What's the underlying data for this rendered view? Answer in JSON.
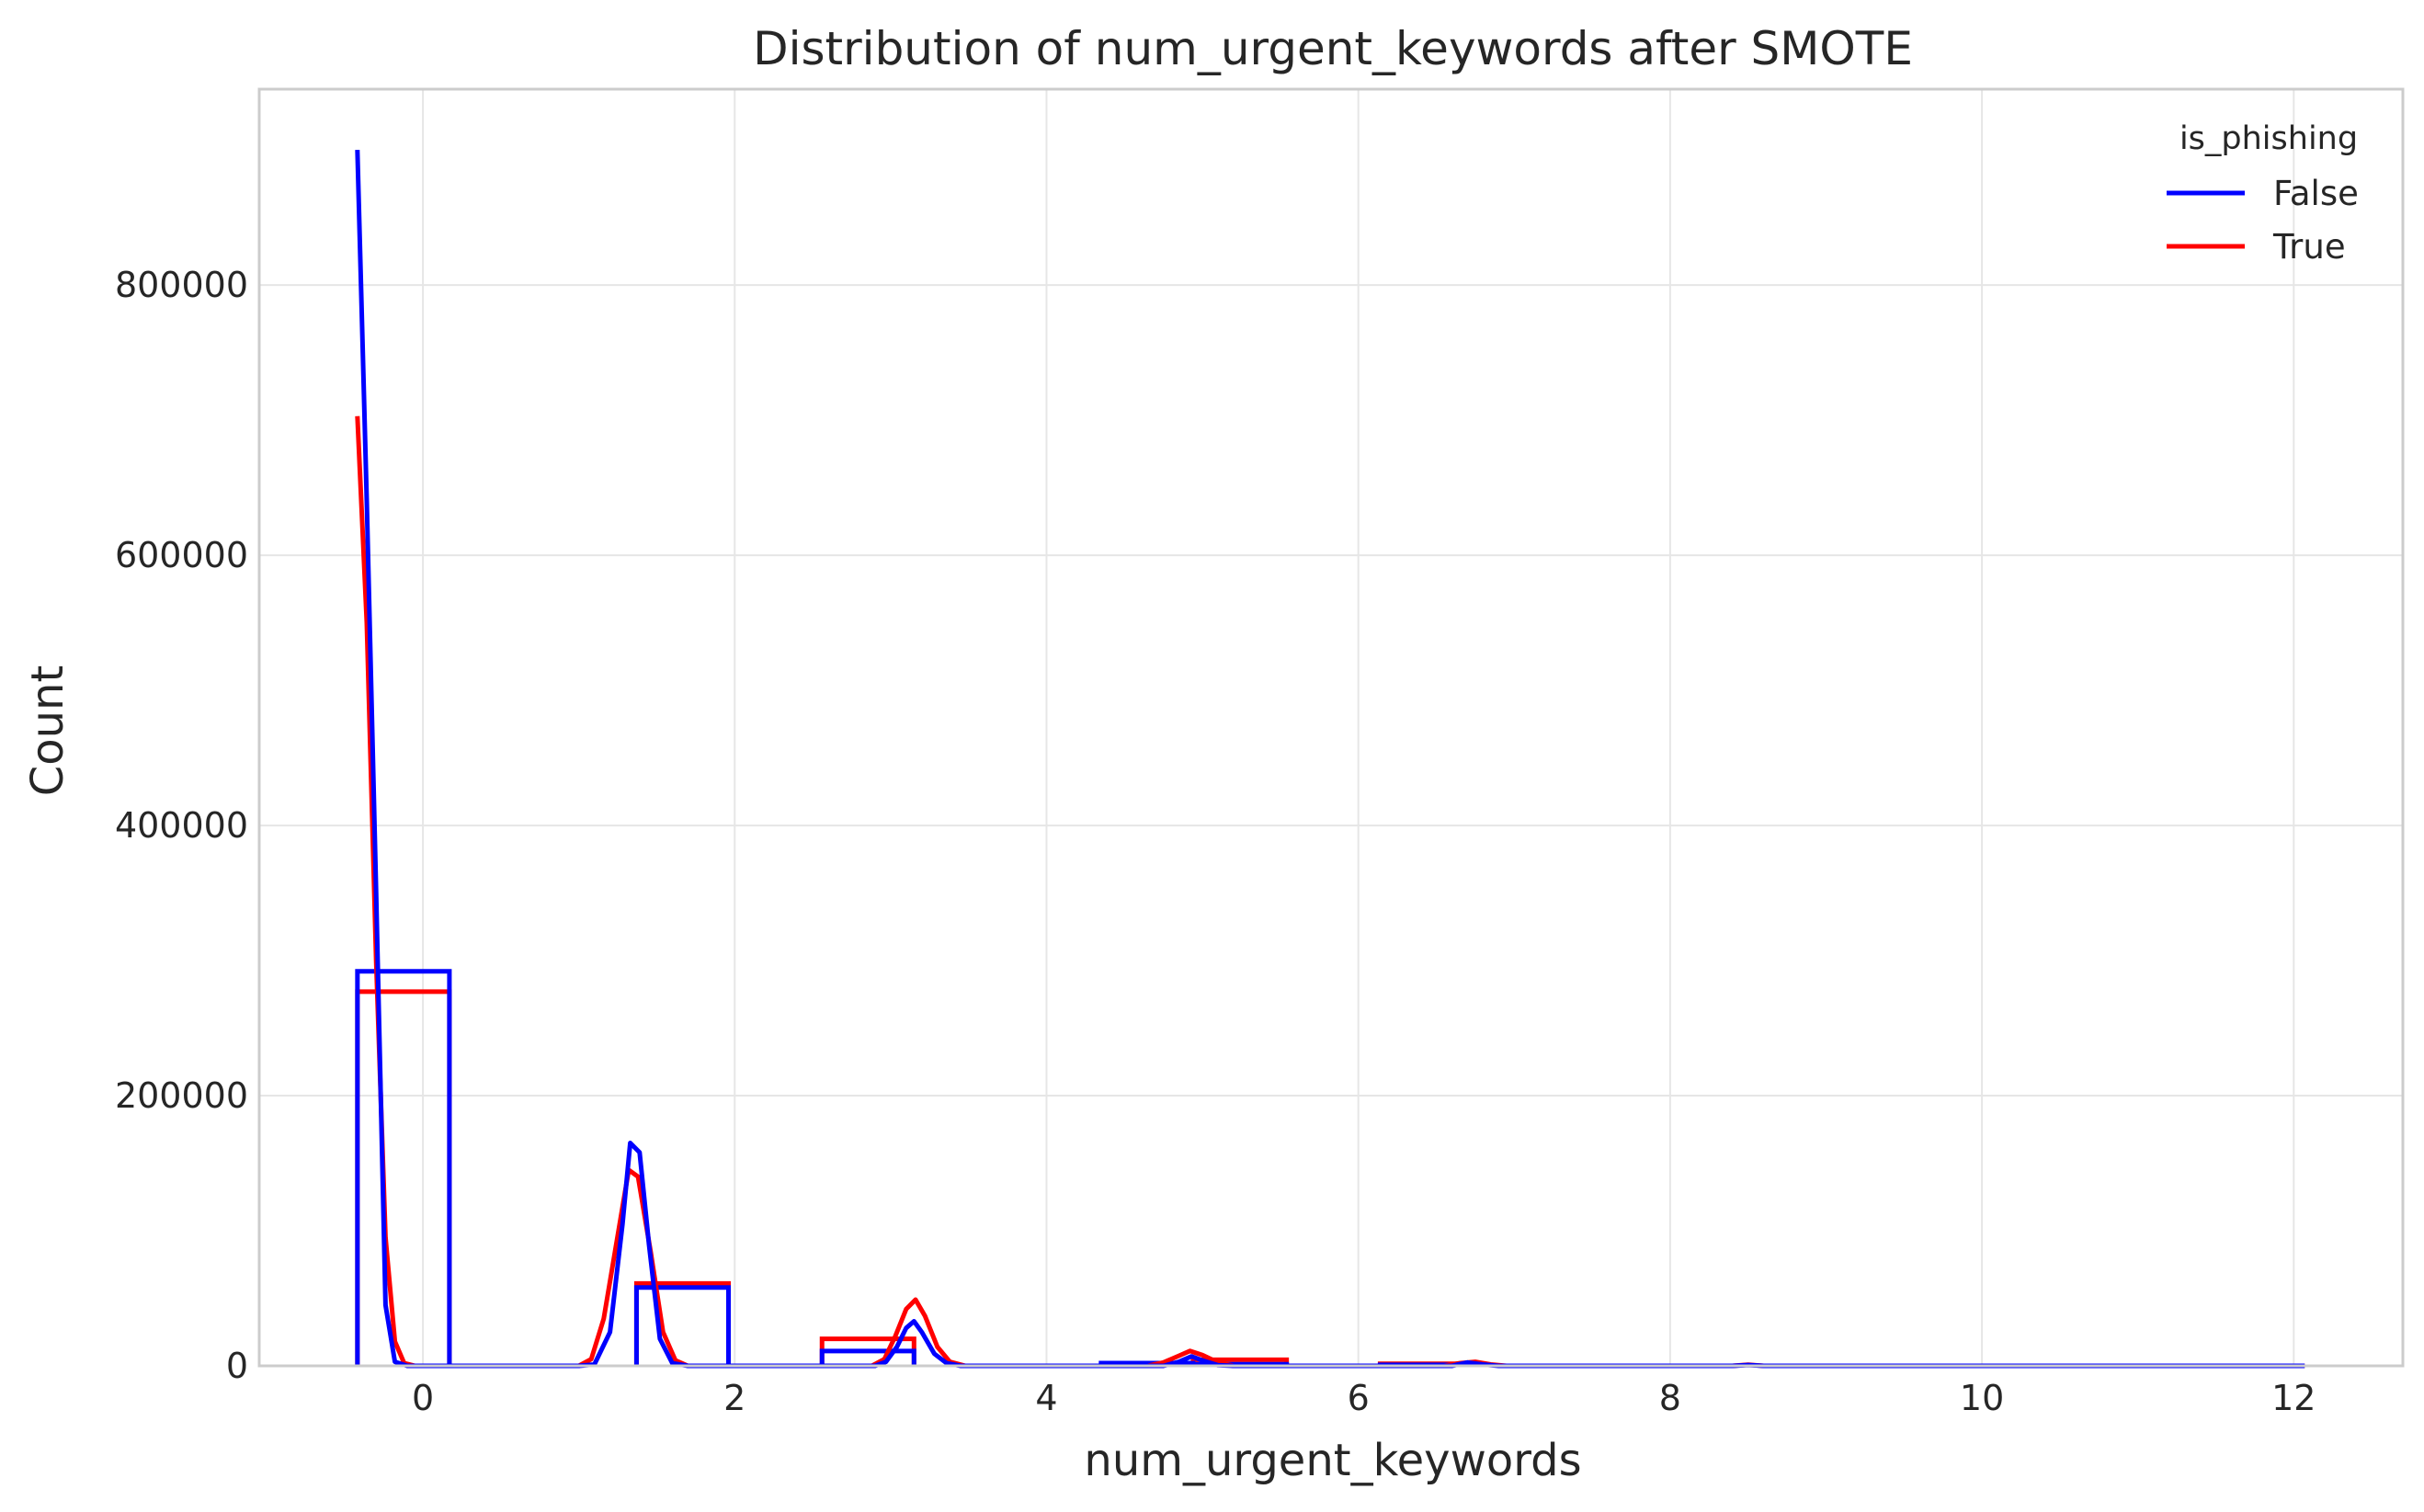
{
  "chart_data": {
    "type": "histogram_kde",
    "title": "Distribution of num_urgent_keywords after SMOTE",
    "xlabel": "num_urgent_keywords",
    "ylabel": "Count",
    "xlim": [
      -1.05,
      12.7
    ],
    "ylim": [
      0,
      945000
    ],
    "x_ticks": [
      0,
      2,
      4,
      6,
      8,
      10,
      12
    ],
    "y_ticks": [
      0,
      200000,
      400000,
      600000,
      800000
    ],
    "grid": true,
    "legend": {
      "title": "is_phishing",
      "placement": "top-right",
      "entries": [
        {
          "label": "False",
          "color": "#0000ff"
        },
        {
          "label": "True",
          "color": "#ff0000"
        }
      ]
    },
    "series": [
      {
        "name": "False",
        "color": "#0000ff",
        "histogram": [
          {
            "x0": -0.42,
            "x1": 0.17,
            "count": 292000
          },
          {
            "x0": 1.37,
            "x1": 1.96,
            "count": 58000
          },
          {
            "x0": 2.56,
            "x1": 3.15,
            "count": 11000
          },
          {
            "x0": 4.35,
            "x1": 4.94,
            "count": 2000
          },
          {
            "x0": 4.94,
            "x1": 5.54,
            "count": 1200
          },
          {
            "x0": 6.14,
            "x1": 6.73,
            "count": 800
          }
        ],
        "kde": [
          [
            -0.42,
            900000
          ],
          [
            -0.36,
            640000
          ],
          [
            -0.3,
            350000
          ],
          [
            -0.24,
            45000
          ],
          [
            -0.18,
            3000
          ],
          [
            -0.1,
            0
          ],
          [
            1.0,
            0
          ],
          [
            1.1,
            1000
          ],
          [
            1.2,
            25000
          ],
          [
            1.28,
            105000
          ],
          [
            1.33,
            165000
          ],
          [
            1.39,
            158000
          ],
          [
            1.45,
            90000
          ],
          [
            1.52,
            20000
          ],
          [
            1.6,
            2000
          ],
          [
            1.7,
            0
          ],
          [
            2.9,
            0
          ],
          [
            2.97,
            3000
          ],
          [
            3.04,
            14000
          ],
          [
            3.1,
            28000
          ],
          [
            3.15,
            33000
          ],
          [
            3.2,
            25000
          ],
          [
            3.28,
            9000
          ],
          [
            3.36,
            2000
          ],
          [
            3.45,
            0
          ],
          [
            4.75,
            0
          ],
          [
            4.85,
            3000
          ],
          [
            4.93,
            7000
          ],
          [
            5.0,
            4000
          ],
          [
            5.1,
            500
          ],
          [
            5.2,
            0
          ],
          [
            6.6,
            0
          ],
          [
            6.7,
            2500
          ],
          [
            6.8,
            1000
          ],
          [
            6.9,
            0
          ],
          [
            8.4,
            0
          ],
          [
            8.5,
            600
          ],
          [
            8.6,
            0
          ],
          [
            12.07,
            0
          ]
        ]
      },
      {
        "name": "True",
        "color": "#ff0000",
        "histogram": [
          {
            "x0": -0.42,
            "x1": 0.17,
            "count": 277000
          },
          {
            "x0": 1.37,
            "x1": 1.96,
            "count": 61000
          },
          {
            "x0": 2.56,
            "x1": 3.15,
            "count": 20000
          },
          {
            "x0": 4.94,
            "x1": 5.54,
            "count": 4500
          },
          {
            "x0": 6.14,
            "x1": 6.73,
            "count": 1500
          }
        ],
        "kde": [
          [
            -0.42,
            703000
          ],
          [
            -0.36,
            550000
          ],
          [
            -0.3,
            300000
          ],
          [
            -0.24,
            95000
          ],
          [
            -0.18,
            18000
          ],
          [
            -0.12,
            2000
          ],
          [
            -0.05,
            0
          ],
          [
            1.0,
            0
          ],
          [
            1.08,
            5000
          ],
          [
            1.16,
            35000
          ],
          [
            1.24,
            90000
          ],
          [
            1.32,
            145000
          ],
          [
            1.38,
            140000
          ],
          [
            1.46,
            85000
          ],
          [
            1.54,
            25000
          ],
          [
            1.62,
            4000
          ],
          [
            1.7,
            0
          ],
          [
            2.88,
            0
          ],
          [
            2.96,
            5000
          ],
          [
            3.03,
            22000
          ],
          [
            3.1,
            42000
          ],
          [
            3.16,
            49000
          ],
          [
            3.22,
            37000
          ],
          [
            3.3,
            14000
          ],
          [
            3.38,
            3000
          ],
          [
            3.48,
            0
          ],
          [
            4.65,
            0
          ],
          [
            4.75,
            2500
          ],
          [
            4.85,
            7500
          ],
          [
            4.92,
            11000
          ],
          [
            5.0,
            8000
          ],
          [
            5.1,
            2500
          ],
          [
            5.2,
            0
          ],
          [
            6.55,
            0
          ],
          [
            6.65,
            2000
          ],
          [
            6.75,
            3000
          ],
          [
            6.85,
            1000
          ],
          [
            6.95,
            0
          ],
          [
            8.4,
            0
          ],
          [
            8.5,
            900
          ],
          [
            8.6,
            0
          ],
          [
            12.07,
            0
          ]
        ]
      }
    ]
  }
}
